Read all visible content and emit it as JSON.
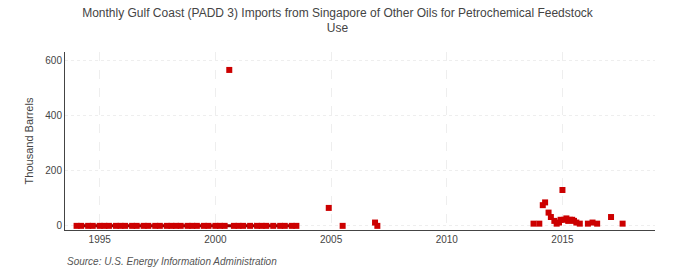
{
  "chart_data": {
    "type": "scatter",
    "title": "Monthly Gulf Coast (PADD 3) Imports from Singapore of Other Oils for Petrochemical Feedstock\nUse",
    "y_label": "Thousand Barrels",
    "annotations": [
      "Source: U.S. Energy Information Administration"
    ],
    "xlim": [
      1993.5,
      2019.0
    ],
    "xticks": [
      1995,
      2000,
      2005,
      2010,
      2015
    ],
    "ylim": [
      -15,
      630
    ],
    "yticks": [
      0,
      200,
      400,
      600
    ],
    "grid": true,
    "series": [
      {
        "type": "line",
        "line_style": "solid",
        "color": "#8b0000",
        "x": [
          1993.9,
          2003.6
        ],
        "values": [
          0,
          0
        ]
      },
      {
        "type": "scatter",
        "marker": "square",
        "color": "#cc0000",
        "x": [
          1994.0,
          1994.2,
          1994.5,
          1994.7,
          1995.0,
          1995.2,
          1995.4,
          1995.7,
          1995.9,
          1996.1,
          1996.4,
          1996.6,
          1996.9,
          1997.1,
          1997.4,
          1997.6,
          1997.9,
          1998.1,
          1998.3,
          1998.5,
          1998.8,
          1999.0,
          1999.2,
          1999.5,
          1999.7,
          2000.0,
          2000.2,
          2000.4,
          2000.6,
          2000.8,
          2001.0,
          2001.2,
          2001.5,
          2001.8,
          2002.0,
          2002.2,
          2002.5,
          2002.8,
          2003.0,
          2003.3,
          2003.5,
          2004.9,
          2005.5,
          2006.9,
          2007.0,
          2013.75,
          2014.0,
          2014.15,
          2014.25,
          2014.4,
          2014.5,
          2014.65,
          2014.75,
          2014.85,
          2014.92,
          2015.0,
          2015.08,
          2015.17,
          2015.25,
          2015.33,
          2015.42,
          2015.5,
          2015.6,
          2015.75,
          2016.1,
          2016.3,
          2016.5,
          2017.1,
          2017.6
        ],
        "values": [
          0,
          0,
          0,
          0,
          0,
          0,
          0,
          0,
          0,
          0,
          0,
          0,
          0,
          0,
          0,
          0,
          0,
          0,
          0,
          0,
          0,
          0,
          0,
          0,
          0,
          0,
          0,
          0,
          565,
          0,
          0,
          0,
          0,
          0,
          0,
          0,
          0,
          0,
          0,
          0,
          0,
          65,
          0,
          12,
          0,
          8,
          8,
          75,
          85,
          48,
          32,
          18,
          8,
          12,
          22,
          130,
          22,
          27,
          18,
          22,
          22,
          18,
          12,
          8,
          8,
          12,
          8,
          32,
          8
        ]
      }
    ]
  }
}
